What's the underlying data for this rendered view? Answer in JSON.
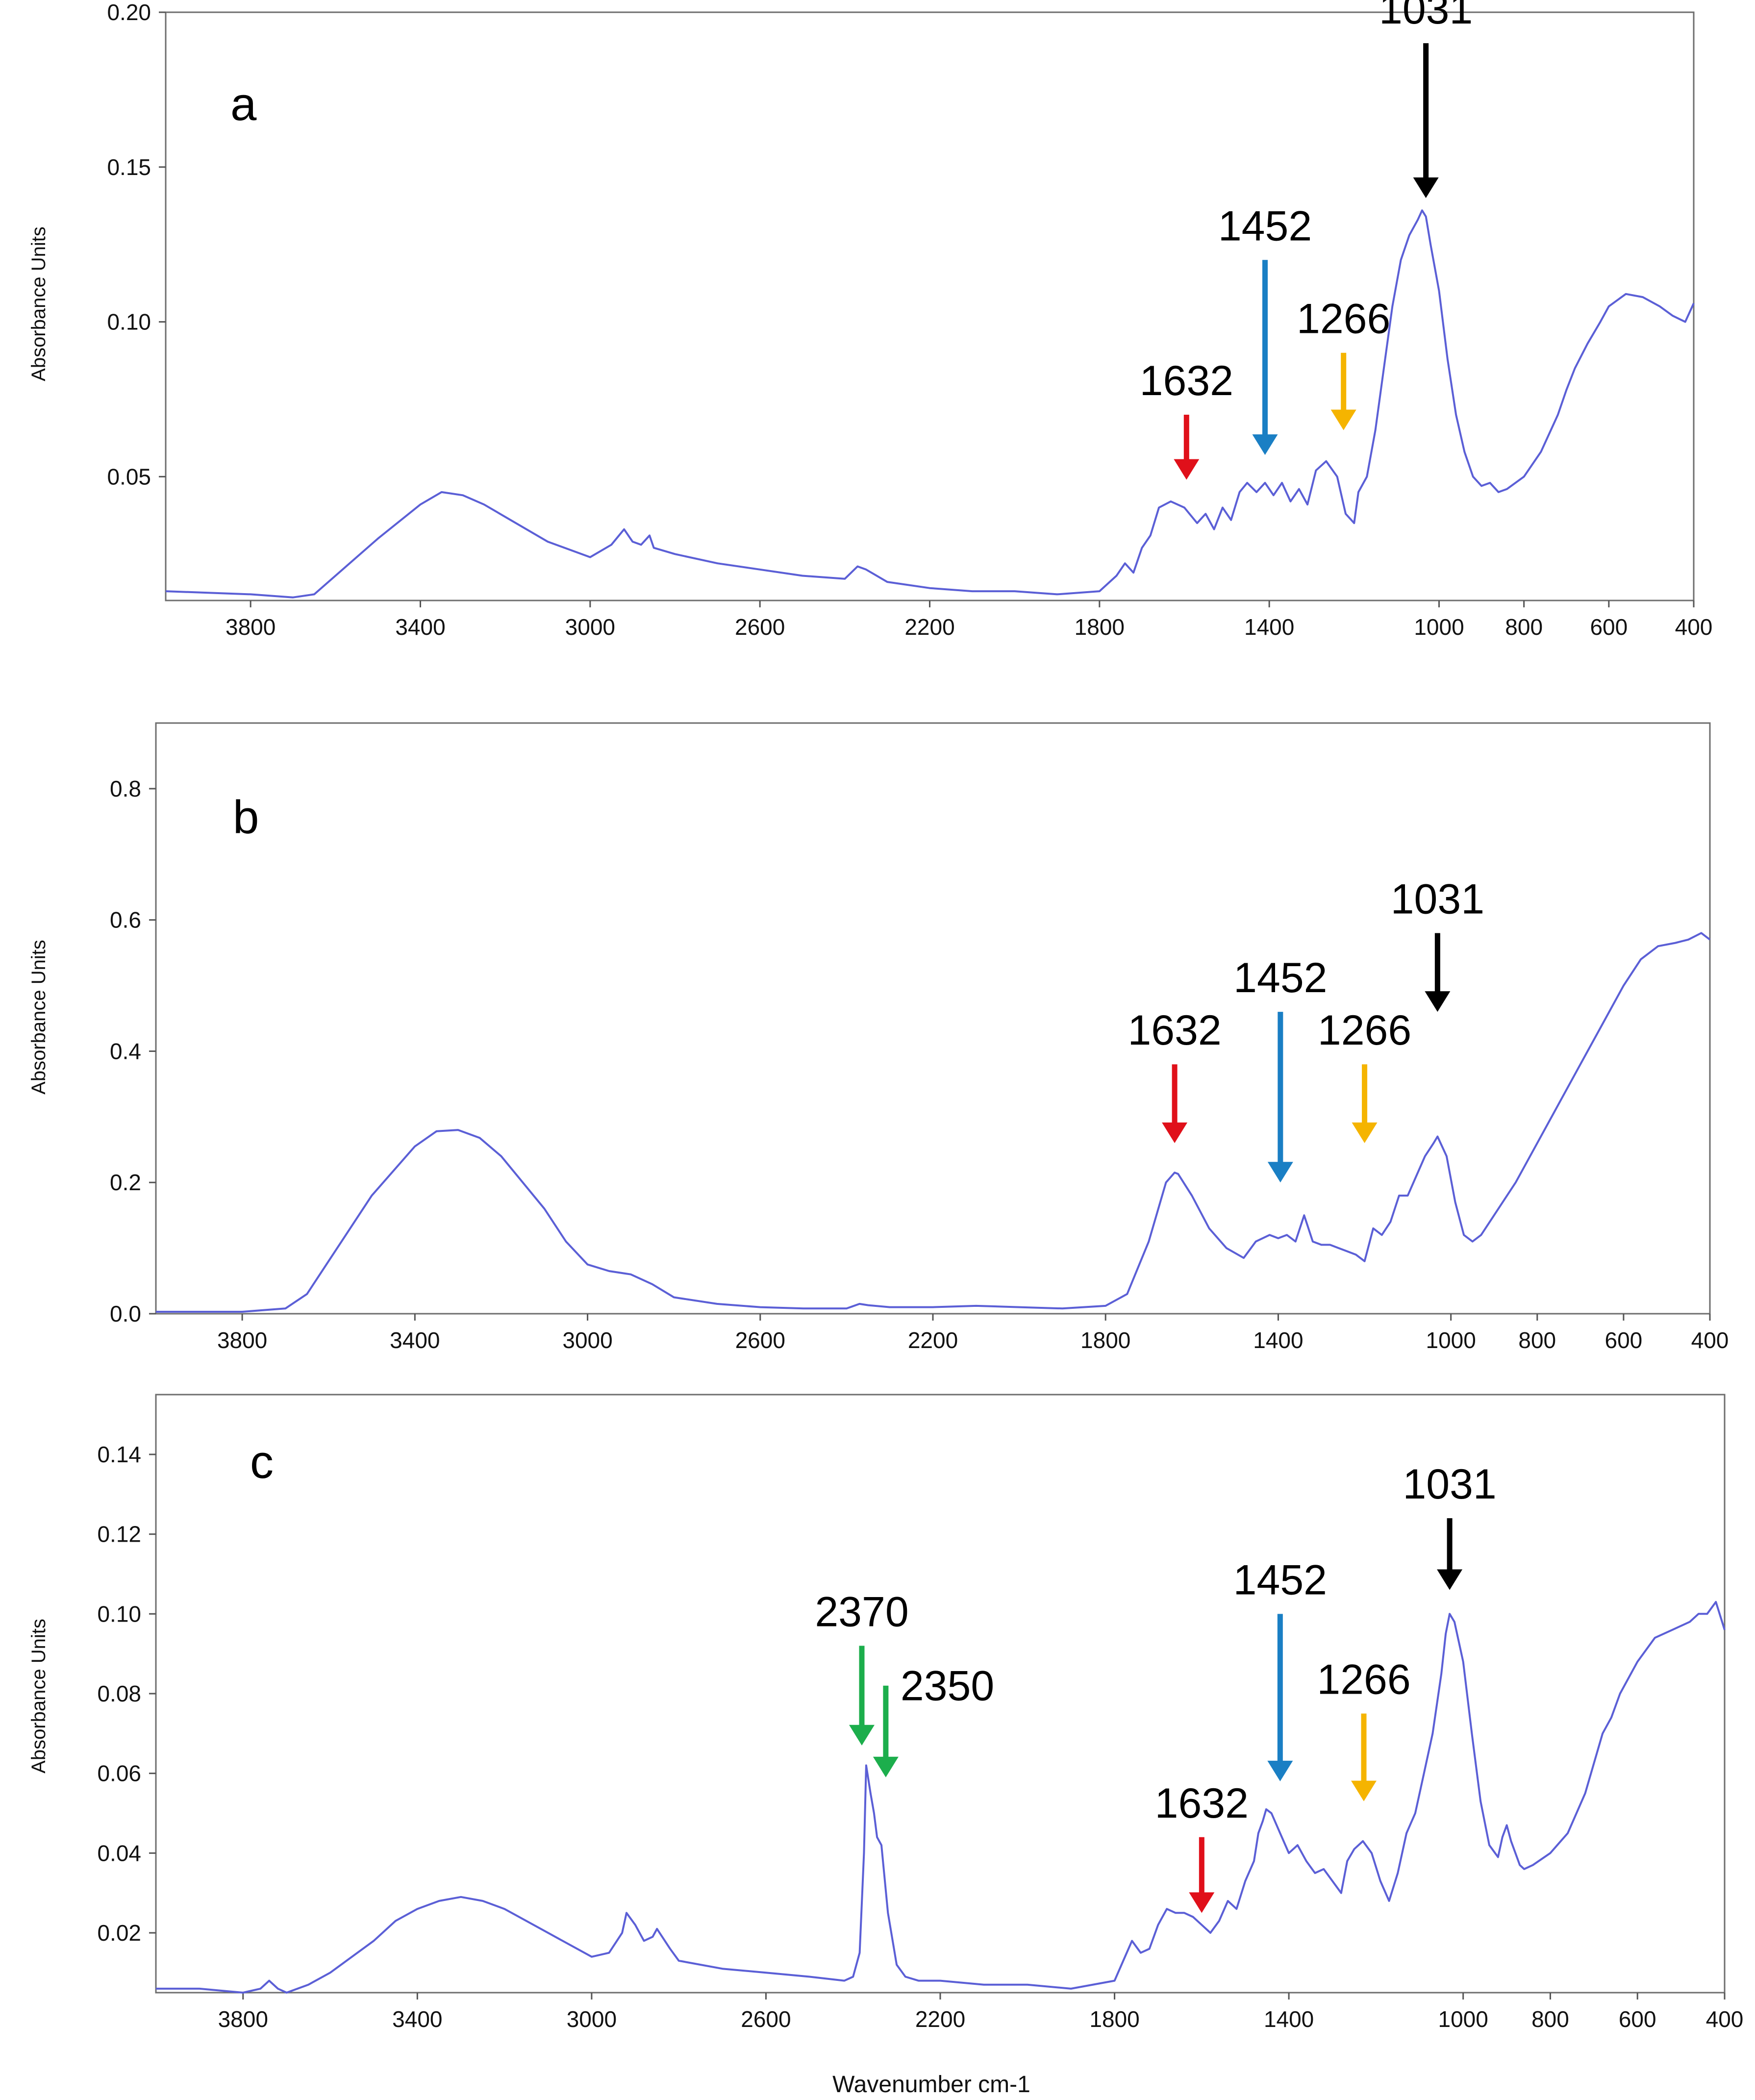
{
  "figure": {
    "x_axis_title": "Wavenumber cm-1",
    "y_axis_title": "Absorbance Units",
    "line_color": "#5b5fd6",
    "arrow_colors": {
      "red": "#e0101a",
      "blue": "#1a7fc4",
      "orange": "#f5b400",
      "black": "#000000",
      "green": "#1cae4c"
    }
  },
  "chart_data": [
    {
      "type": "line",
      "panel_label": "a",
      "xlabel": "",
      "ylabel": "Absorbance Units",
      "xlim": [
        4000,
        400
      ],
      "ylim": [
        0.01,
        0.2
      ],
      "x_ticks": [
        3800,
        3400,
        3000,
        2600,
        2200,
        1800,
        1400,
        1000,
        800,
        600,
        400
      ],
      "y_ticks": [
        0.05,
        0.1,
        0.15,
        0.2
      ],
      "y_tick_labels": [
        "0.05",
        "0.10",
        "0.15",
        "0.20"
      ],
      "grid": false,
      "series": [
        {
          "x": [
            4000,
            3800,
            3700,
            3650,
            3600,
            3500,
            3400,
            3350,
            3300,
            3250,
            3200,
            3100,
            3000,
            2950,
            2920,
            2900,
            2880,
            2860,
            2850,
            2800,
            2700,
            2600,
            2500,
            2400,
            2370,
            2350,
            2300,
            2200,
            2100,
            2000,
            1900,
            1800,
            1760,
            1740,
            1720,
            1700,
            1680,
            1660,
            1632,
            1600,
            1570,
            1550,
            1530,
            1510,
            1490,
            1470,
            1452,
            1430,
            1410,
            1390,
            1370,
            1350,
            1330,
            1310,
            1290,
            1266,
            1240,
            1220,
            1200,
            1190,
            1170,
            1150,
            1130,
            1110,
            1090,
            1070,
            1050,
            1040,
            1031,
            1020,
            1000,
            980,
            960,
            940,
            920,
            900,
            880,
            860,
            840,
            800,
            760,
            720,
            700,
            680,
            650,
            620,
            600,
            560,
            520,
            480,
            450,
            420,
            400
          ],
          "y": [
            0.013,
            0.012,
            0.011,
            0.012,
            0.018,
            0.03,
            0.041,
            0.045,
            0.044,
            0.041,
            0.037,
            0.029,
            0.024,
            0.028,
            0.033,
            0.029,
            0.028,
            0.031,
            0.027,
            0.025,
            0.022,
            0.02,
            0.018,
            0.017,
            0.021,
            0.02,
            0.016,
            0.014,
            0.013,
            0.013,
            0.012,
            0.013,
            0.018,
            0.022,
            0.019,
            0.027,
            0.031,
            0.04,
            0.042,
            0.04,
            0.035,
            0.038,
            0.033,
            0.04,
            0.036,
            0.045,
            0.048,
            0.045,
            0.048,
            0.044,
            0.048,
            0.042,
            0.046,
            0.041,
            0.052,
            0.055,
            0.05,
            0.038,
            0.035,
            0.045,
            0.05,
            0.065,
            0.085,
            0.105,
            0.12,
            0.128,
            0.133,
            0.136,
            0.134,
            0.125,
            0.11,
            0.088,
            0.07,
            0.058,
            0.05,
            0.047,
            0.048,
            0.045,
            0.046,
            0.05,
            0.058,
            0.07,
            0.078,
            0.085,
            0.093,
            0.1,
            0.105,
            0.109,
            0.108,
            0.105,
            0.102,
            0.1,
            0.106
          ]
        }
      ],
      "annotations": [
        {
          "label": "1031",
          "color": "black",
          "x": 1031,
          "tip_y": 0.14,
          "tail_y": 0.19
        },
        {
          "label": "1452",
          "color": "blue",
          "x": 1410,
          "tip_y": 0.057,
          "tail_y": 0.12
        },
        {
          "label": "1266",
          "color": "orange",
          "x": 1225,
          "tip_y": 0.065,
          "tail_y": 0.09
        },
        {
          "label": "1632",
          "color": "red",
          "x": 1595,
          "tip_y": 0.049,
          "tail_y": 0.07
        }
      ]
    },
    {
      "type": "line",
      "panel_label": "b",
      "xlabel": "",
      "ylabel": "Absorbance Units",
      "xlim": [
        4000,
        400
      ],
      "ylim": [
        0.0,
        0.9
      ],
      "x_ticks": [
        3800,
        3400,
        3000,
        2600,
        2200,
        1800,
        1400,
        1000,
        800,
        600,
        400
      ],
      "y_ticks": [
        0.0,
        0.2,
        0.4,
        0.6,
        0.8
      ],
      "y_tick_labels": [
        "0.0",
        "0.2",
        "0.4",
        "0.6",
        "0.8"
      ],
      "grid": false,
      "series": [
        {
          "x": [
            4000,
            3800,
            3700,
            3650,
            3600,
            3500,
            3400,
            3350,
            3300,
            3250,
            3200,
            3100,
            3050,
            3000,
            2950,
            2900,
            2850,
            2800,
            2700,
            2600,
            2500,
            2400,
            2370,
            2350,
            2300,
            2200,
            2100,
            2000,
            1900,
            1800,
            1750,
            1700,
            1660,
            1640,
            1632,
            1600,
            1560,
            1520,
            1480,
            1452,
            1420,
            1400,
            1380,
            1360,
            1340,
            1320,
            1300,
            1280,
            1260,
            1240,
            1220,
            1200,
            1180,
            1160,
            1140,
            1120,
            1100,
            1080,
            1060,
            1040,
            1031,
            1010,
            990,
            970,
            950,
            930,
            900,
            850,
            800,
            750,
            700,
            650,
            600,
            560,
            520,
            480,
            450,
            420,
            400
          ],
          "y": [
            0.003,
            0.003,
            0.008,
            0.03,
            0.08,
            0.18,
            0.255,
            0.278,
            0.28,
            0.268,
            0.24,
            0.16,
            0.11,
            0.075,
            0.065,
            0.06,
            0.045,
            0.025,
            0.015,
            0.01,
            0.008,
            0.008,
            0.015,
            0.013,
            0.01,
            0.01,
            0.012,
            0.01,
            0.008,
            0.012,
            0.03,
            0.11,
            0.2,
            0.215,
            0.213,
            0.18,
            0.13,
            0.1,
            0.085,
            0.11,
            0.12,
            0.115,
            0.12,
            0.11,
            0.15,
            0.11,
            0.105,
            0.105,
            0.1,
            0.095,
            0.09,
            0.08,
            0.13,
            0.12,
            0.14,
            0.18,
            0.18,
            0.21,
            0.24,
            0.26,
            0.27,
            0.24,
            0.17,
            0.12,
            0.11,
            0.12,
            0.15,
            0.2,
            0.26,
            0.32,
            0.38,
            0.44,
            0.5,
            0.54,
            0.56,
            0.565,
            0.57,
            0.58,
            0.57
          ]
        }
      ],
      "annotations": [
        {
          "label": "1031",
          "color": "black",
          "x": 1031,
          "tip_y": 0.46,
          "tail_y": 0.58
        },
        {
          "label": "1452",
          "color": "blue",
          "x": 1395,
          "tip_y": 0.2,
          "tail_y": 0.46
        },
        {
          "label": "1266",
          "color": "orange",
          "x": 1200,
          "tip_y": 0.26,
          "tail_y": 0.38
        },
        {
          "label": "1632",
          "color": "red",
          "x": 1640,
          "tip_y": 0.26,
          "tail_y": 0.38
        }
      ]
    },
    {
      "type": "line",
      "panel_label": "c",
      "xlabel": "Wavenumber cm-1",
      "ylabel": "Absorbance Units",
      "xlim": [
        4000,
        400
      ],
      "ylim": [
        0.005,
        0.155
      ],
      "x_ticks": [
        3800,
        3400,
        3000,
        2600,
        2200,
        1800,
        1400,
        1000,
        800,
        600,
        400
      ],
      "y_ticks": [
        0.02,
        0.04,
        0.06,
        0.08,
        0.1,
        0.12,
        0.14
      ],
      "y_tick_labels": [
        "0.02",
        "0.04",
        "0.06",
        "0.08",
        "0.10",
        "0.12",
        "0.14"
      ],
      "grid": false,
      "series": [
        {
          "x": [
            4000,
            3900,
            3800,
            3760,
            3740,
            3720,
            3700,
            3650,
            3600,
            3550,
            3500,
            3450,
            3400,
            3350,
            3300,
            3250,
            3200,
            3150,
            3100,
            3050,
            3000,
            2960,
            2930,
            2920,
            2900,
            2880,
            2860,
            2850,
            2820,
            2800,
            2700,
            2600,
            2500,
            2420,
            2400,
            2385,
            2375,
            2370,
            2360,
            2352,
            2345,
            2335,
            2320,
            2300,
            2280,
            2250,
            2200,
            2100,
            2000,
            1900,
            1800,
            1780,
            1760,
            1740,
            1720,
            1700,
            1680,
            1660,
            1640,
            1620,
            1600,
            1580,
            1560,
            1540,
            1520,
            1500,
            1480,
            1470,
            1460,
            1452,
            1440,
            1420,
            1400,
            1380,
            1360,
            1340,
            1320,
            1300,
            1280,
            1266,
            1250,
            1230,
            1210,
            1190,
            1170,
            1150,
            1130,
            1110,
            1090,
            1070,
            1050,
            1040,
            1031,
            1020,
            1000,
            980,
            960,
            940,
            920,
            910,
            900,
            890,
            880,
            870,
            860,
            840,
            800,
            760,
            720,
            680,
            660,
            640,
            600,
            560,
            520,
            480,
            460,
            440,
            420,
            400
          ],
          "y": [
            0.006,
            0.006,
            0.005,
            0.006,
            0.008,
            0.006,
            0.005,
            0.007,
            0.01,
            0.014,
            0.018,
            0.023,
            0.026,
            0.028,
            0.029,
            0.028,
            0.026,
            0.023,
            0.02,
            0.017,
            0.014,
            0.015,
            0.02,
            0.025,
            0.022,
            0.018,
            0.019,
            0.021,
            0.016,
            0.013,
            0.011,
            0.01,
            0.009,
            0.008,
            0.009,
            0.015,
            0.04,
            0.062,
            0.055,
            0.05,
            0.044,
            0.042,
            0.025,
            0.012,
            0.009,
            0.008,
            0.008,
            0.007,
            0.007,
            0.006,
            0.008,
            0.013,
            0.018,
            0.015,
            0.016,
            0.022,
            0.026,
            0.025,
            0.025,
            0.024,
            0.022,
            0.02,
            0.023,
            0.028,
            0.026,
            0.033,
            0.038,
            0.045,
            0.048,
            0.051,
            0.05,
            0.045,
            0.04,
            0.042,
            0.038,
            0.035,
            0.036,
            0.033,
            0.03,
            0.038,
            0.041,
            0.043,
            0.04,
            0.033,
            0.028,
            0.035,
            0.045,
            0.05,
            0.06,
            0.07,
            0.085,
            0.095,
            0.1,
            0.098,
            0.088,
            0.07,
            0.053,
            0.042,
            0.039,
            0.044,
            0.047,
            0.043,
            0.04,
            0.037,
            0.036,
            0.037,
            0.04,
            0.045,
            0.055,
            0.07,
            0.074,
            0.08,
            0.088,
            0.094,
            0.096,
            0.098,
            0.1,
            0.1,
            0.103,
            0.096
          ]
        }
      ],
      "annotations": [
        {
          "label": "1031",
          "color": "black",
          "x": 1031,
          "tip_y": 0.106,
          "tail_y": 0.124
        },
        {
          "label": "1452",
          "color": "blue",
          "x": 1420,
          "tip_y": 0.058,
          "tail_y": 0.1
        },
        {
          "label": "1266",
          "color": "orange",
          "x": 1228,
          "tip_y": 0.053,
          "tail_y": 0.075
        },
        {
          "label": "1632",
          "color": "red",
          "x": 1600,
          "tip_y": 0.025,
          "tail_y": 0.044
        },
        {
          "label": "2370",
          "color": "green",
          "x": 2380,
          "tip_y": 0.067,
          "tail_y": 0.092
        },
        {
          "label": "2350",
          "color": "green",
          "x": 2325,
          "tip_y": 0.059,
          "tail_y": 0.082
        }
      ]
    }
  ]
}
